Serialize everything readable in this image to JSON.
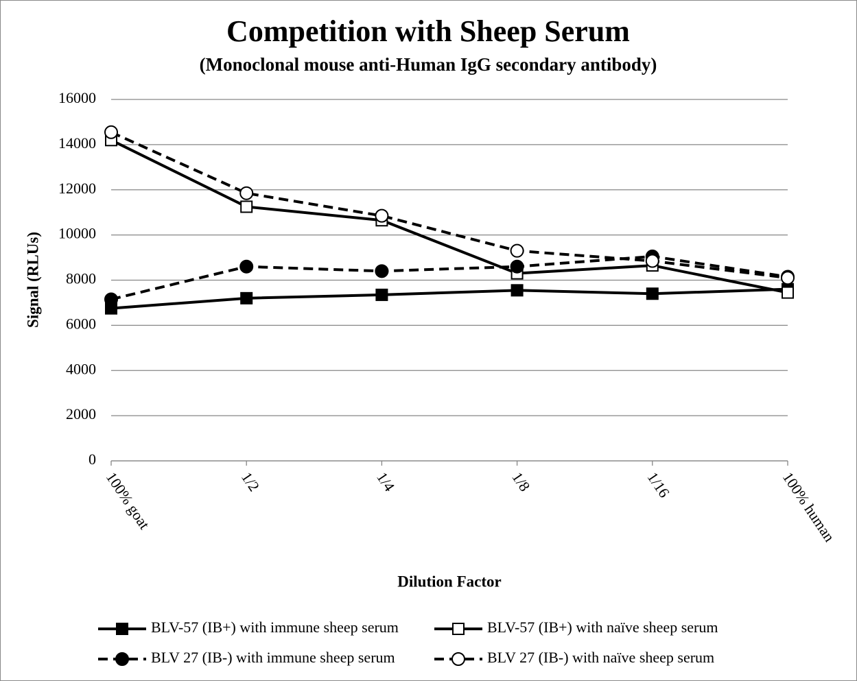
{
  "chart_data": {
    "type": "line",
    "title": "Competition with Sheep Serum",
    "subtitle": "(Monoclonal mouse anti-Human IgG secondary antibody)",
    "x_label": "Dilution Factor",
    "y_label": "Signal (RLUs)",
    "categories": [
      "100% goat",
      "1/2",
      "1/4",
      "1/8",
      "1/16",
      "100% human"
    ],
    "ylim": [
      0,
      16000
    ],
    "yticks": [
      0,
      2000,
      4000,
      6000,
      8000,
      10000,
      12000,
      14000,
      16000
    ],
    "grid": true,
    "legend": "bottom",
    "series": [
      {
        "name": "BLV-57 (IB+) with immune sheep serum",
        "color": "#000000",
        "marker": "square",
        "filled": true,
        "dashed": false,
        "values": [
          6750,
          7200,
          7350,
          7550,
          7400,
          7600
        ]
      },
      {
        "name": "BLV-57 (IB+) with naïve sheep serum",
        "color": "#000000",
        "marker": "square",
        "filled": false,
        "dashed": false,
        "values": [
          14200,
          11250,
          10650,
          8300,
          8650,
          7450
        ]
      },
      {
        "name": "BLV 27 (IB-) with immune sheep serum",
        "color": "#000000",
        "marker": "circle",
        "filled": true,
        "dashed": true,
        "values": [
          7150,
          8600,
          8400,
          8600,
          9050,
          8150
        ]
      },
      {
        "name": "BLV 27 (IB-) with naïve sheep serum",
        "color": "#000000",
        "marker": "circle",
        "filled": false,
        "dashed": true,
        "values": [
          14550,
          11850,
          10850,
          9300,
          8850,
          8100
        ]
      }
    ]
  }
}
